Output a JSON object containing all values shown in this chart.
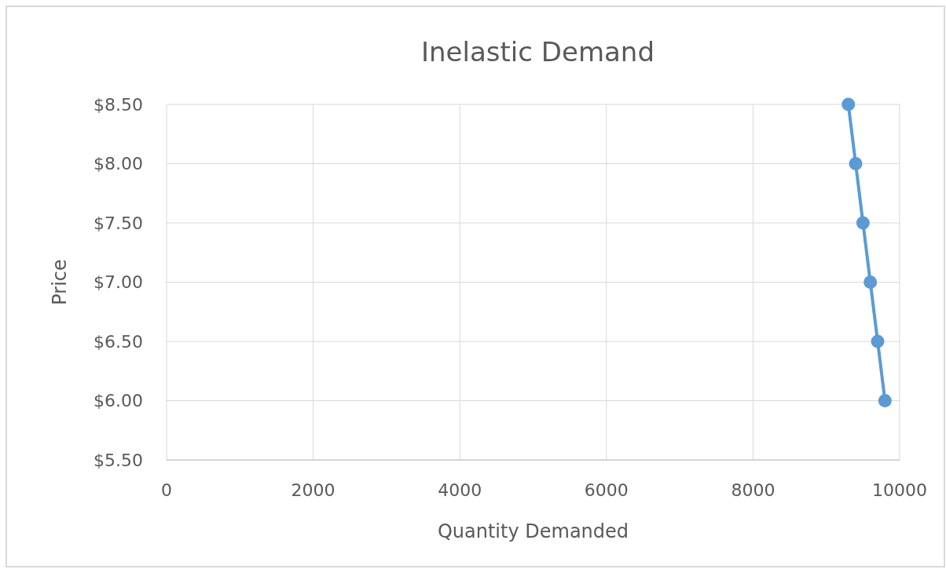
{
  "chart_data": {
    "type": "line",
    "title": "Inelastic Demand",
    "xlabel": "Quantity Demanded",
    "ylabel": "Price",
    "x": [
      9300,
      9400,
      9500,
      9600,
      9700,
      9800
    ],
    "series": [
      {
        "color": "#5b9bd5",
        "values": [
          8.5,
          8.0,
          7.5,
          7.0,
          6.5,
          6.0
        ]
      }
    ],
    "xlim": [
      0,
      10000
    ],
    "xticks": [
      0,
      2000,
      4000,
      6000,
      8000,
      10000
    ],
    "ylim": [
      5.5,
      8.5
    ],
    "yticks": [
      {
        "value": 5.5,
        "label": "$5.50"
      },
      {
        "value": 6,
        "label": "$6.00"
      },
      {
        "value": 6.5,
        "label": "$6.50"
      },
      {
        "value": 7,
        "label": "$7.00"
      },
      {
        "value": 7.5,
        "label": "$7.50"
      },
      {
        "value": 8,
        "label": "$8.00"
      },
      {
        "value": 8.5,
        "label": "$8.50"
      }
    ],
    "grid": true,
    "marker": "circle",
    "line_style": "solid"
  }
}
